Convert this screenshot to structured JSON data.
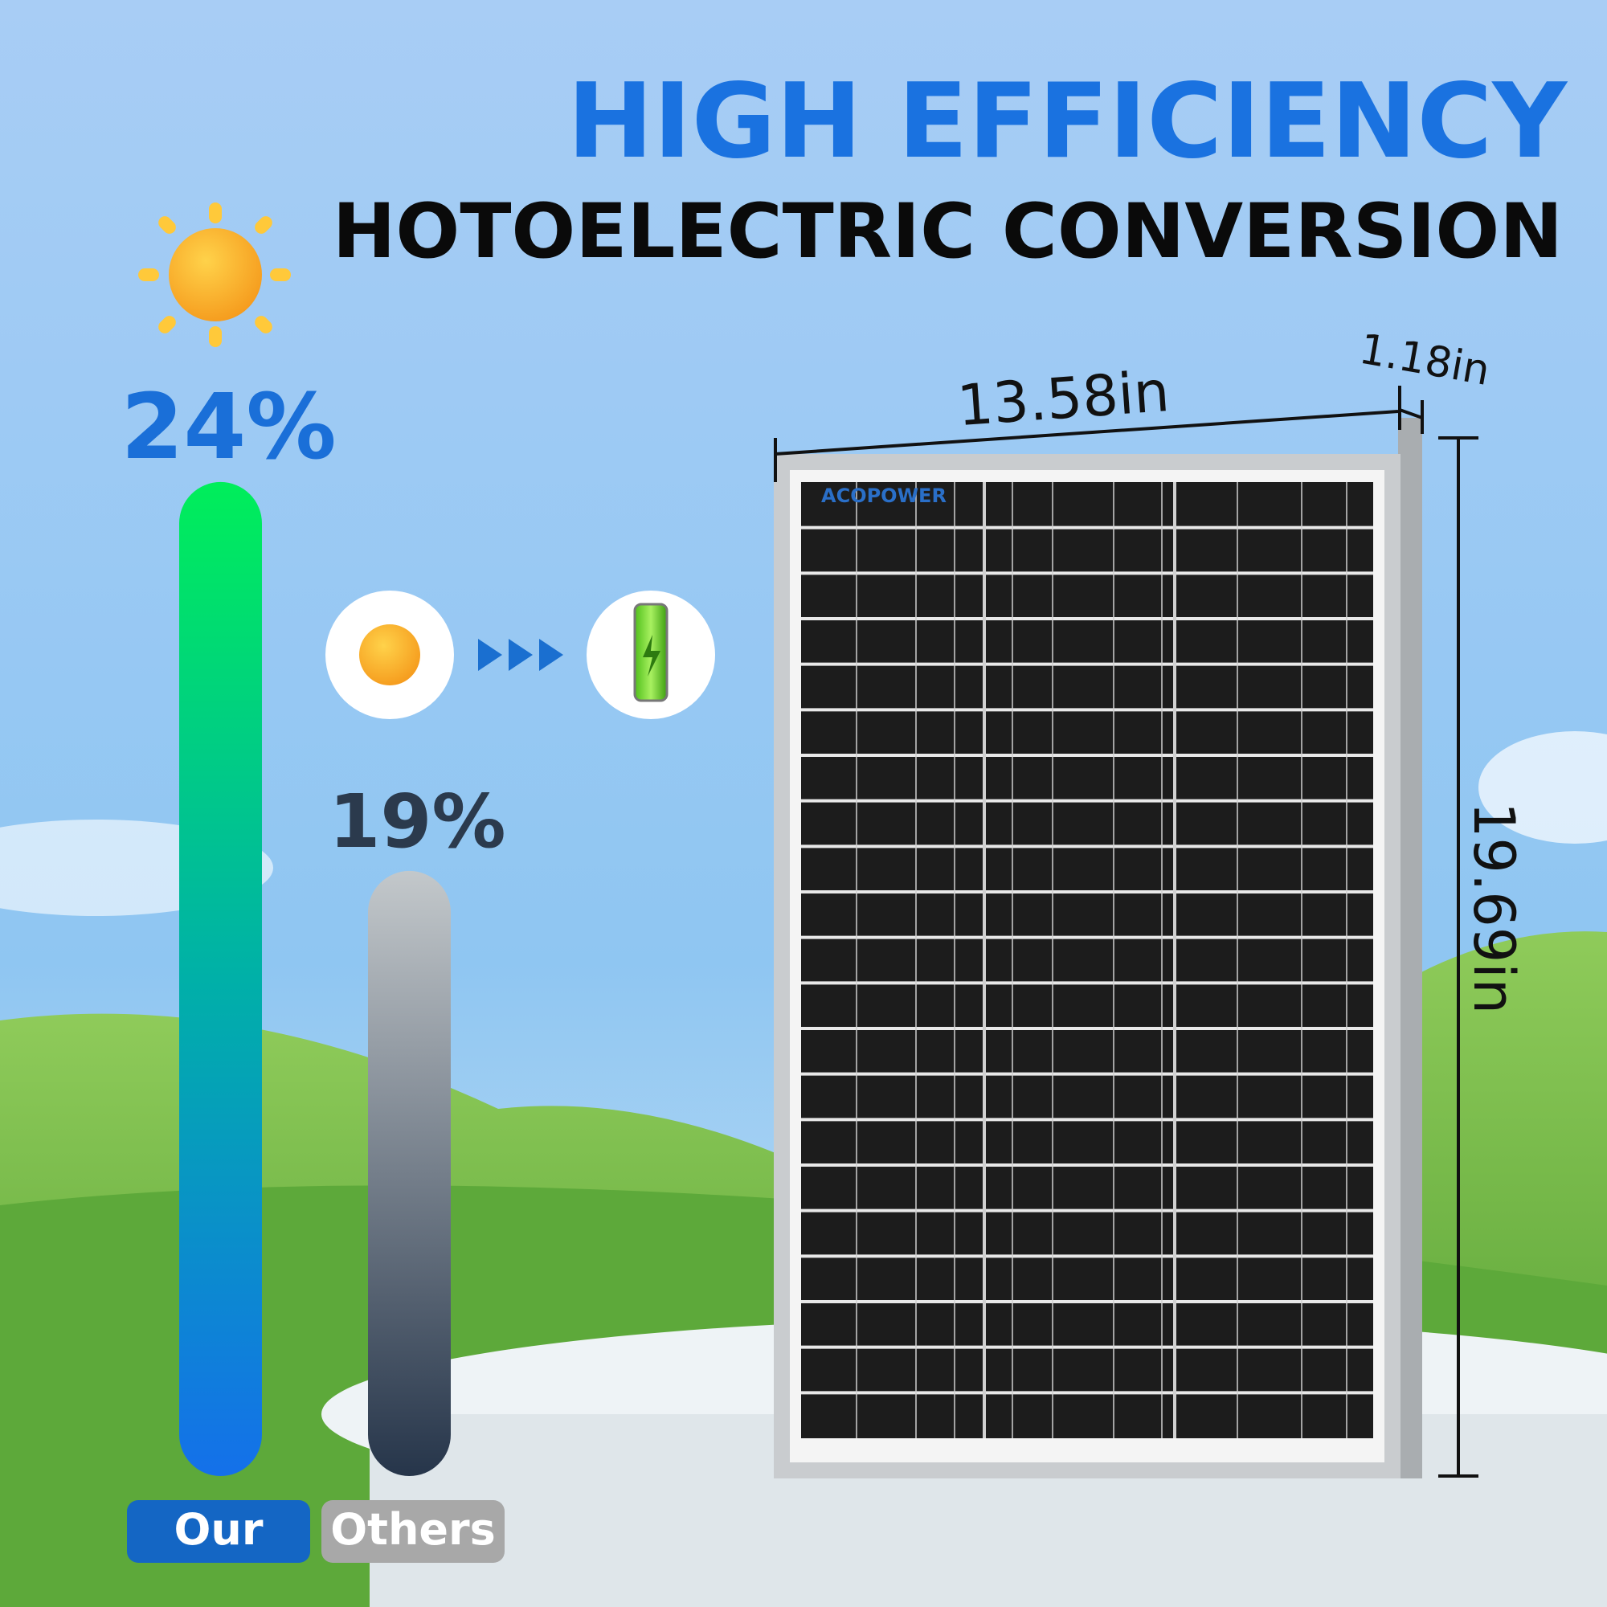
{
  "header": {
    "title": "HIGH EFFICIENCY",
    "subtitle": "HOTOELECTRIC CONVERSION"
  },
  "chart_data": {
    "type": "bar",
    "categories": [
      "Our",
      "Others"
    ],
    "values": [
      24,
      19
    ],
    "value_labels": [
      "24%",
      "19%"
    ]
  },
  "panel": {
    "brand": "ACOPOWER",
    "width": "13.58in",
    "depth": "1.18in",
    "height": "19.69in"
  }
}
